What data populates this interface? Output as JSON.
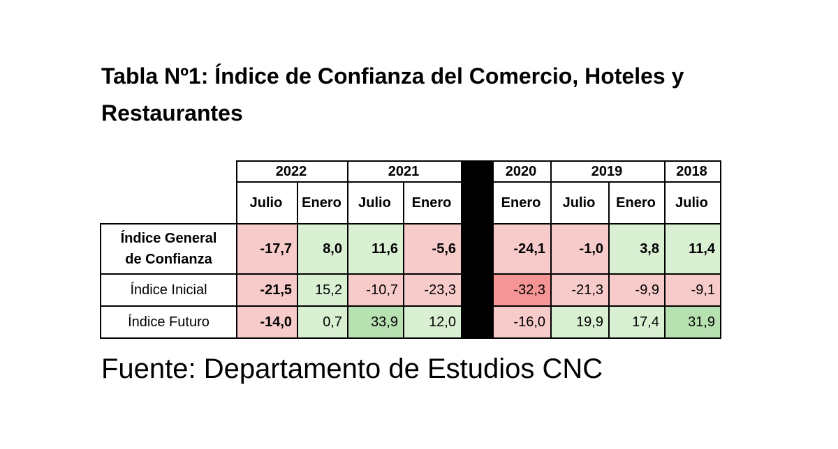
{
  "title": "Tabla Nº1: Índice de Confianza del Comercio, Hoteles y Restaurantes",
  "table": {
    "years": [
      "2022",
      "2021",
      "2020",
      "2019",
      "2018"
    ],
    "months": [
      "Julio",
      "Enero",
      "Julio",
      "Enero",
      "Enero",
      "Julio",
      "Enero",
      "Julio"
    ],
    "rows": [
      {
        "label_line1": "Índice General",
        "label_line2": "de Confianza",
        "values": [
          "-17,7",
          "8,0",
          "11,6",
          "-5,6",
          "-24,1",
          "-1,0",
          "3,8",
          "11,4"
        ]
      },
      {
        "label": "Índice Inicial",
        "values": [
          "-21,5",
          "15,2",
          "-10,7",
          "-23,3",
          "-32,3",
          "-21,3",
          "-9,9",
          "-9,1"
        ]
      },
      {
        "label": "Índice Futuro",
        "values": [
          "-14,0",
          "0,7",
          "33,9",
          "12,0",
          "-16,0",
          "19,9",
          "17,4",
          "31,9"
        ]
      }
    ]
  },
  "colors": {
    "negative": "#f8cbcb",
    "strong_negative": "#f59595",
    "positive": "#d9f0d3",
    "strong_positive": "#b7e1b0"
  },
  "source": "Fuente: Departamento de Estudios CNC"
}
